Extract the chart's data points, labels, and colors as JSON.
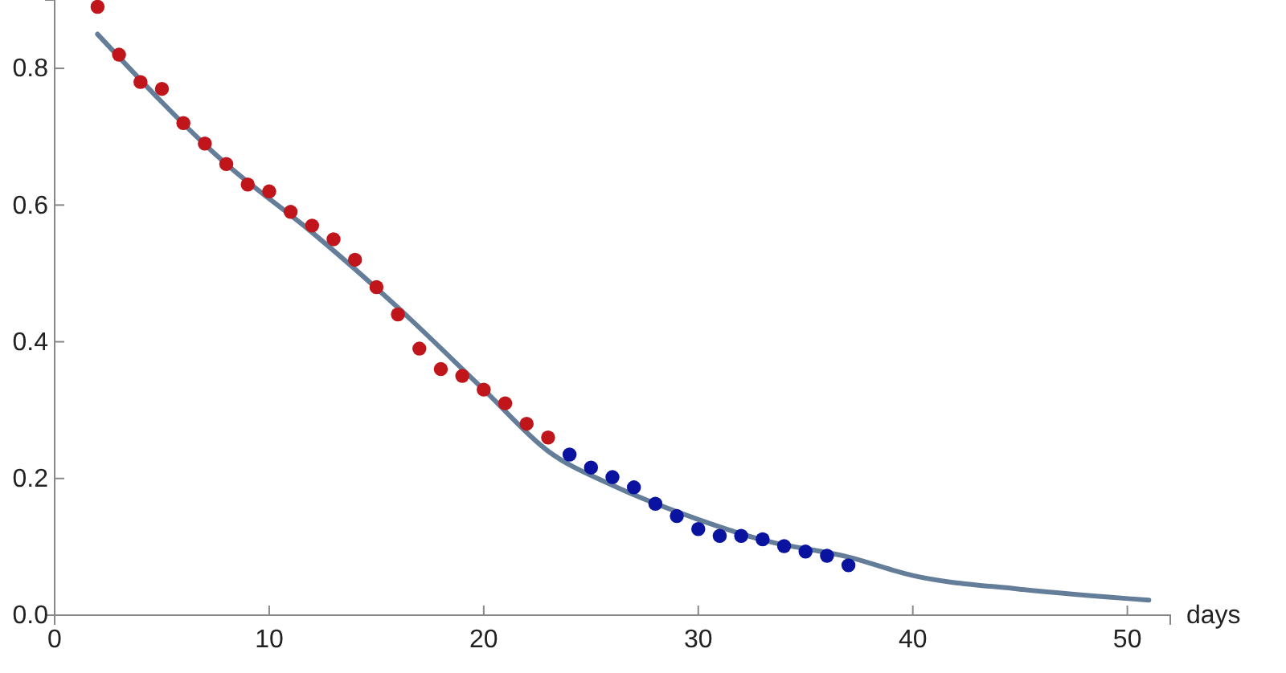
{
  "chart_data": {
    "type": "scatter",
    "xlabel": "days",
    "xlim": [
      0,
      52
    ],
    "ylim": [
      0,
      0.9
    ],
    "xticks": [
      0,
      10,
      20,
      30,
      40,
      50
    ],
    "yticks": [
      {
        "value": 0,
        "label": "0.0"
      },
      {
        "value": 0.2,
        "label": "0.2"
      },
      {
        "value": 0.4,
        "label": "0.4"
      },
      {
        "value": 0.6,
        "label": "0.6"
      },
      {
        "value": 0.8,
        "label": "0.8"
      }
    ],
    "grid": false,
    "series": [
      {
        "type": "line",
        "color": "#647d99",
        "x": [
          2,
          8,
          12,
          16,
          20,
          23,
          26,
          30,
          33,
          37,
          40,
          45,
          51
        ],
        "values": [
          0.85,
          0.66,
          0.56,
          0.45,
          0.33,
          0.24,
          0.19,
          0.14,
          0.11,
          0.085,
          0.058,
          0.038,
          0.022
        ]
      },
      {
        "marker": "circle",
        "color": "#c0161b",
        "x": [
          2,
          3,
          4,
          5,
          6,
          7,
          8,
          9,
          10,
          11,
          12,
          13,
          14,
          15,
          16,
          17,
          18,
          19,
          20,
          21,
          22,
          23
        ],
        "values": [
          0.89,
          0.82,
          0.78,
          0.77,
          0.72,
          0.69,
          0.66,
          0.63,
          0.62,
          0.59,
          0.57,
          0.55,
          0.52,
          0.48,
          0.44,
          0.39,
          0.36,
          0.35,
          0.33,
          0.31,
          0.28,
          0.26
        ]
      },
      {
        "marker": "circle",
        "color": "#0a12a0",
        "x": [
          24,
          25,
          26,
          27,
          28,
          29,
          30,
          31,
          32,
          33,
          34,
          35,
          36,
          37
        ],
        "values": [
          0.235,
          0.216,
          0.202,
          0.187,
          0.163,
          0.145,
          0.126,
          0.116,
          0.116,
          0.111,
          0.101,
          0.093,
          0.087,
          0.073
        ]
      }
    ]
  }
}
